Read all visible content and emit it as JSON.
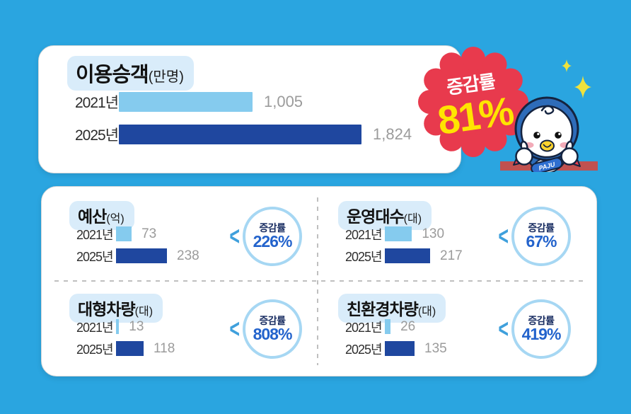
{
  "colors": {
    "background": "#2AA5E0",
    "bar_2021": "#85CBEE",
    "bar_2025": "#1F479F",
    "badge_red": "#E83A4D",
    "badge_yellow": "#FFE400",
    "ring_blue": "#A6D7F3",
    "percent_blue": "#2363CC",
    "navy_label": "#1B2F63",
    "value_gray": "#9B9B9B",
    "title_pill": "#D9ECFA",
    "ledge_red": "#C0514F"
  },
  "top_card": {
    "title": "이용승객",
    "unit": "(만명)",
    "rows": [
      {
        "year": "2021년",
        "value": "1,005"
      },
      {
        "year": "2025년",
        "value": "1,824"
      }
    ],
    "badge": {
      "label": "증감률",
      "value": "81%"
    },
    "mascot": {
      "scarf": "PAJU"
    }
  },
  "quads": [
    {
      "title": "예산",
      "unit": "(억)",
      "rows": [
        {
          "year": "2021년",
          "value": "73"
        },
        {
          "year": "2025년",
          "value": "238"
        }
      ],
      "change_label": "증감률",
      "change_value": "226%"
    },
    {
      "title": "운영대수",
      "unit": "(대)",
      "rows": [
        {
          "year": "2021년",
          "value": "130"
        },
        {
          "year": "2025년",
          "value": "217"
        }
      ],
      "change_label": "증감률",
      "change_value": "67%"
    },
    {
      "title": "대형차량",
      "unit": "(대)",
      "rows": [
        {
          "year": "2021년",
          "value": "13"
        },
        {
          "year": "2025년",
          "value": "118"
        }
      ],
      "change_label": "증감률",
      "change_value": "808%"
    },
    {
      "title": "친환경차량",
      "unit": "(대)",
      "rows": [
        {
          "year": "2021년",
          "value": "26"
        },
        {
          "year": "2025년",
          "value": "135"
        }
      ],
      "change_label": "증감률",
      "change_value": "419%"
    }
  ],
  "chart_data": [
    {
      "type": "bar",
      "title": "이용승객",
      "ylabel": "만명",
      "categories": [
        "2021년",
        "2025년"
      ],
      "values": [
        1005,
        1824
      ],
      "change_pct": 81,
      "legend_position": "none",
      "grid": false
    },
    {
      "type": "bar",
      "title": "예산",
      "ylabel": "억",
      "categories": [
        "2021년",
        "2025년"
      ],
      "values": [
        73,
        238
      ],
      "change_pct": 226,
      "legend_position": "none",
      "grid": false
    },
    {
      "type": "bar",
      "title": "운영대수",
      "ylabel": "대",
      "categories": [
        "2021년",
        "2025년"
      ],
      "values": [
        130,
        217
      ],
      "change_pct": 67,
      "legend_position": "none",
      "grid": false
    },
    {
      "type": "bar",
      "title": "대형차량",
      "ylabel": "대",
      "categories": [
        "2021년",
        "2025년"
      ],
      "values": [
        13,
        118
      ],
      "change_pct": 808,
      "legend_position": "none",
      "grid": false
    },
    {
      "type": "bar",
      "title": "친환경차량",
      "ylabel": "대",
      "categories": [
        "2021년",
        "2025년"
      ],
      "values": [
        26,
        135
      ],
      "change_pct": 419,
      "legend_position": "none",
      "grid": false
    }
  ]
}
